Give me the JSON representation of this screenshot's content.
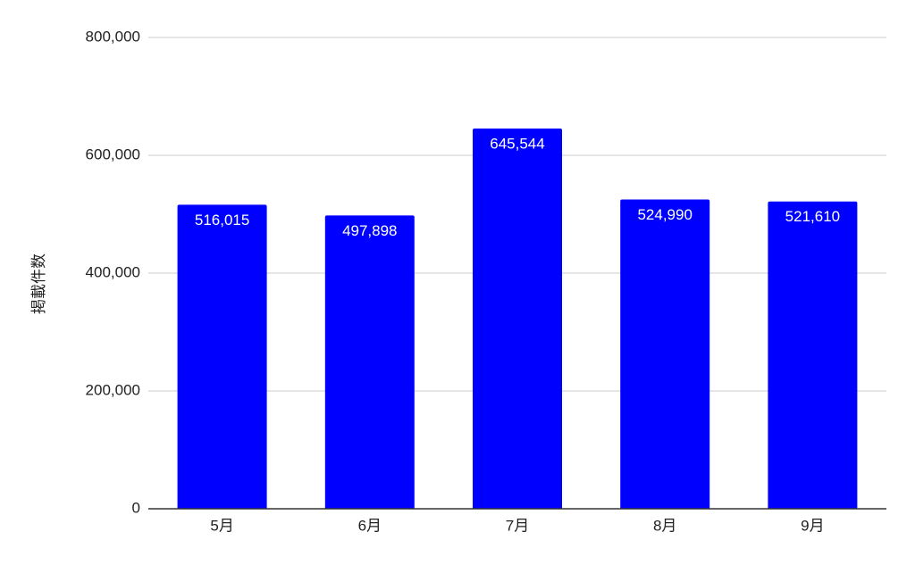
{
  "chart_data": {
    "type": "bar",
    "title": "",
    "xlabel": "",
    "ylabel": "掲載件数",
    "categories": [
      "5月",
      "6月",
      "7月",
      "8月",
      "9月"
    ],
    "values": [
      516015,
      497898,
      645544,
      524990,
      521610
    ],
    "value_labels": [
      "516,015",
      "497,898",
      "645,544",
      "524,990",
      "521,610"
    ],
    "ylim": [
      0,
      800000
    ],
    "yticks": [
      0,
      200000,
      400000,
      600000,
      800000
    ],
    "ytick_labels": [
      "0",
      "200,000",
      "400,000",
      "600,000",
      "800,000"
    ],
    "grid": true,
    "legend": "none",
    "colors": {
      "bar": "#0000ff",
      "grid": "#cccccc",
      "axis": "#333333",
      "text": "#222222",
      "data_label": "#ffffff"
    }
  }
}
